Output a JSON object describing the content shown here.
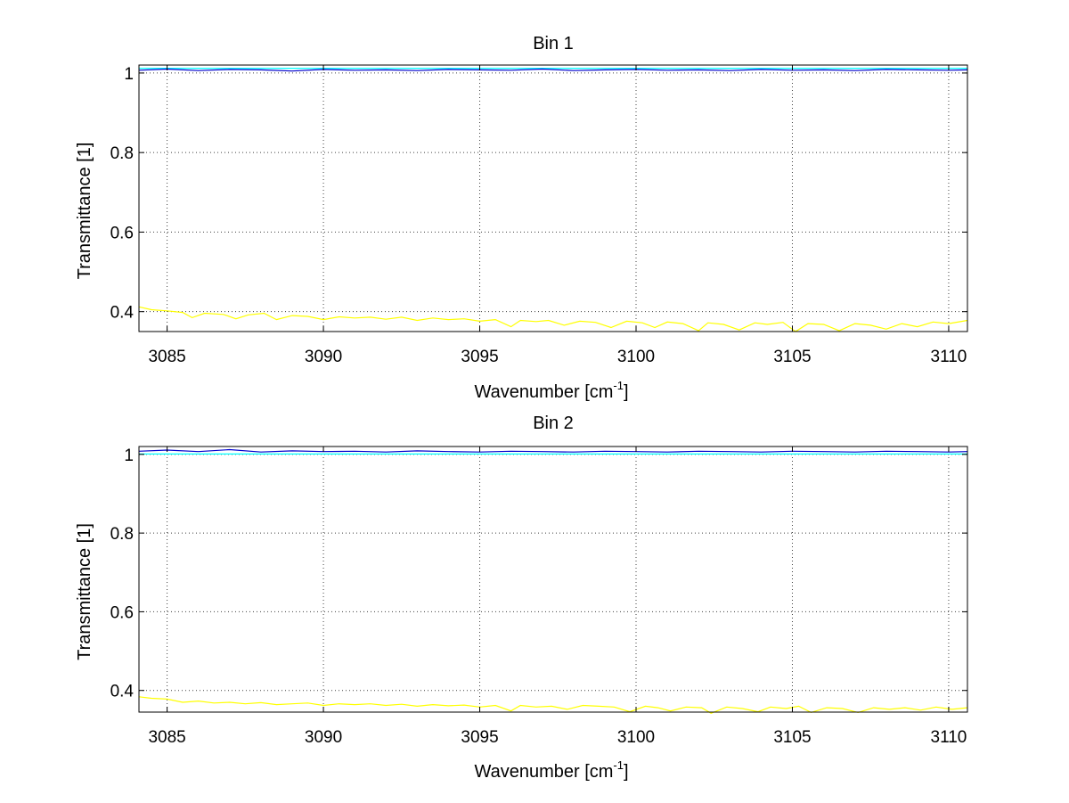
{
  "chart_data": [
    {
      "type": "line",
      "title": "Bin 1",
      "xlabel": "Wavenumber [cm",
      "xlabel_sup": "-1",
      "xlabel_tail": "]",
      "ylabel": "Transmittance [1]",
      "xlim": [
        3084.1,
        3110.6
      ],
      "ylim": [
        0.35,
        1.02
      ],
      "xticks": [
        3085,
        3090,
        3095,
        3100,
        3105,
        3110
      ],
      "yticks": [
        0.4,
        0.6,
        0.8,
        1
      ],
      "ytick_labels": [
        "0.4",
        "0.6",
        "0.8",
        "1"
      ],
      "grid": true,
      "series": [
        {
          "color": "#00ffff",
          "x": [
            3084.1,
            3090,
            3095,
            3100,
            3105,
            3110.6
          ],
          "y": [
            1.012,
            1.012,
            1.012,
            1.012,
            1.012,
            1.012
          ]
        },
        {
          "color": "#0000cc",
          "x": [
            3084.1,
            3085,
            3086,
            3087,
            3088,
            3089,
            3090,
            3091,
            3092,
            3093,
            3094,
            3095,
            3096,
            3097,
            3098,
            3099,
            3100,
            3101,
            3102,
            3103,
            3104,
            3105,
            3106,
            3107,
            3108,
            3109,
            3110,
            3110.6
          ],
          "y": [
            1.007,
            1.01,
            1.006,
            1.009,
            1.008,
            1.005,
            1.009,
            1.007,
            1.008,
            1.006,
            1.009,
            1.008,
            1.007,
            1.01,
            1.006,
            1.008,
            1.009,
            1.007,
            1.008,
            1.006,
            1.009,
            1.007,
            1.008,
            1.006,
            1.009,
            1.008,
            1.007,
            1.008
          ]
        },
        {
          "color": "#ffff00",
          "x": [
            3084.1,
            3084.5,
            3085.0,
            3085.5,
            3085.8,
            3086.2,
            3086.8,
            3087.2,
            3087.6,
            3088.1,
            3088.5,
            3089.0,
            3089.5,
            3090.0,
            3090.5,
            3091.0,
            3091.5,
            3092.0,
            3092.5,
            3093.0,
            3093.5,
            3094.0,
            3094.5,
            3095.0,
            3095.5,
            3096.0,
            3096.3,
            3096.8,
            3097.2,
            3097.7,
            3098.2,
            3098.7,
            3099.2,
            3099.7,
            3100.2,
            3100.6,
            3101.0,
            3101.5,
            3102.0,
            3102.3,
            3102.8,
            3103.3,
            3103.8,
            3104.2,
            3104.7,
            3105.1,
            3105.5,
            3106.0,
            3106.5,
            3107.0,
            3107.5,
            3108.0,
            3108.5,
            3109.0,
            3109.5,
            3110.0,
            3110.6
          ],
          "y": [
            0.412,
            0.405,
            0.402,
            0.398,
            0.385,
            0.396,
            0.393,
            0.382,
            0.392,
            0.396,
            0.38,
            0.39,
            0.388,
            0.38,
            0.387,
            0.384,
            0.386,
            0.381,
            0.386,
            0.378,
            0.384,
            0.38,
            0.382,
            0.376,
            0.38,
            0.362,
            0.378,
            0.375,
            0.378,
            0.366,
            0.376,
            0.373,
            0.36,
            0.376,
            0.372,
            0.36,
            0.374,
            0.37,
            0.352,
            0.372,
            0.368,
            0.354,
            0.372,
            0.368,
            0.373,
            0.35,
            0.37,
            0.368,
            0.352,
            0.37,
            0.366,
            0.356,
            0.37,
            0.362,
            0.374,
            0.37,
            0.378
          ]
        }
      ]
    },
    {
      "type": "line",
      "title": "Bin 2",
      "xlabel": "Wavenumber [cm",
      "xlabel_sup": "-1",
      "xlabel_tail": "]",
      "ylabel": "Transmittance [1]",
      "xlim": [
        3084.1,
        3110.6
      ],
      "ylim": [
        0.345,
        1.02
      ],
      "xticks": [
        3085,
        3090,
        3095,
        3100,
        3105,
        3110
      ],
      "yticks": [
        0.4,
        0.6,
        0.8,
        1
      ],
      "ytick_labels": [
        "0.4",
        "0.6",
        "0.8",
        "1"
      ],
      "grid": true,
      "series": [
        {
          "color": "#00ffff",
          "x": [
            3084.1,
            3090,
            3095,
            3100,
            3105,
            3110.6
          ],
          "y": [
            1.001,
            1.001,
            1.001,
            1.001,
            1.001,
            1.001
          ]
        },
        {
          "color": "#0000cc",
          "x": [
            3084.1,
            3085,
            3086,
            3087,
            3088,
            3089,
            3090,
            3091,
            3092,
            3093,
            3094,
            3095,
            3096,
            3097,
            3098,
            3099,
            3100,
            3101,
            3102,
            3103,
            3104,
            3105,
            3106,
            3107,
            3108,
            3109,
            3110,
            3110.6
          ],
          "y": [
            1.008,
            1.011,
            1.007,
            1.012,
            1.006,
            1.009,
            1.007,
            1.008,
            1.006,
            1.009,
            1.007,
            1.006,
            1.008,
            1.007,
            1.006,
            1.008,
            1.007,
            1.006,
            1.008,
            1.007,
            1.006,
            1.008,
            1.007,
            1.006,
            1.008,
            1.007,
            1.006,
            1.007
          ]
        },
        {
          "color": "#ffff00",
          "x": [
            3084.1,
            3084.5,
            3085.0,
            3085.5,
            3086.0,
            3086.5,
            3087.0,
            3087.5,
            3088.0,
            3088.5,
            3089.0,
            3089.5,
            3090.0,
            3090.5,
            3091.0,
            3091.5,
            3092.0,
            3092.5,
            3093.0,
            3093.5,
            3094.0,
            3094.5,
            3095.0,
            3095.5,
            3096.0,
            3096.3,
            3096.8,
            3097.3,
            3097.8,
            3098.3,
            3098.8,
            3099.3,
            3099.8,
            3100.3,
            3100.7,
            3101.1,
            3101.6,
            3102.1,
            3102.4,
            3102.9,
            3103.4,
            3103.9,
            3104.3,
            3104.8,
            3105.2,
            3105.6,
            3106.1,
            3106.6,
            3107.1,
            3107.6,
            3108.1,
            3108.6,
            3109.1,
            3109.6,
            3110.1,
            3110.6
          ],
          "y": [
            0.384,
            0.38,
            0.378,
            0.37,
            0.373,
            0.368,
            0.37,
            0.366,
            0.369,
            0.364,
            0.366,
            0.368,
            0.362,
            0.366,
            0.364,
            0.366,
            0.362,
            0.365,
            0.36,
            0.364,
            0.361,
            0.363,
            0.358,
            0.362,
            0.348,
            0.362,
            0.358,
            0.36,
            0.352,
            0.362,
            0.36,
            0.358,
            0.346,
            0.36,
            0.356,
            0.348,
            0.358,
            0.356,
            0.342,
            0.358,
            0.354,
            0.346,
            0.358,
            0.354,
            0.36,
            0.344,
            0.356,
            0.354,
            0.344,
            0.356,
            0.352,
            0.356,
            0.35,
            0.358,
            0.352,
            0.356
          ]
        }
      ]
    }
  ]
}
